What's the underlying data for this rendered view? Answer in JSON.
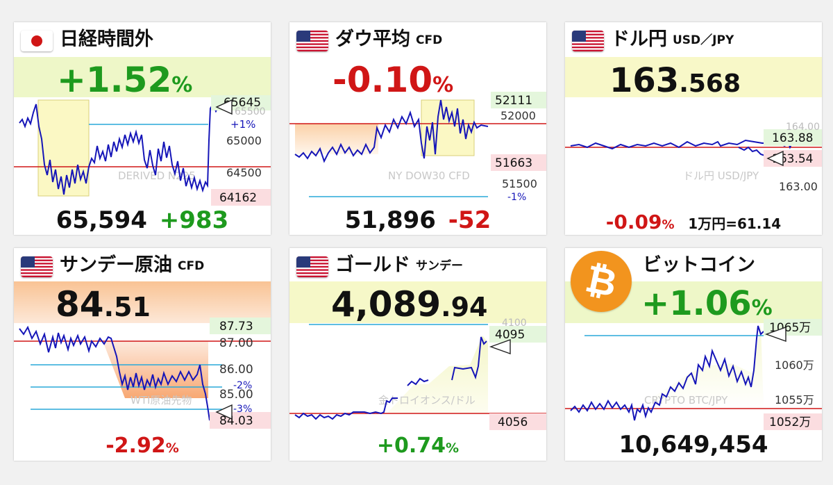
{
  "cards": {
    "nikkei": {
      "title": "日経時間外",
      "change_pct": "+1.52",
      "pct_sign": "%",
      "price": "65,594",
      "change": "+983",
      "axis": {
        "top": "65645",
        "hidden": "65500",
        "pct_mark": "+1%",
        "mid": "65000",
        "low": "64500",
        "bottom": "64162"
      },
      "watermark": "DERIVED N225"
    },
    "dow": {
      "title": "ダウ平均",
      "subtitle": "CFD",
      "change_pct": "-0.10",
      "pct_sign": "%",
      "price": "51,896",
      "change": "-52",
      "axis": {
        "top": "52111",
        "upper": "52000",
        "bottom": "51663",
        "low": "51500",
        "pct_mark": "-1%"
      },
      "watermark": "NY DOW30 CFD"
    },
    "usdjpy": {
      "title": "ドル円",
      "subtitle": "USD／JPY",
      "price_int": "163",
      "price_dec": ".568",
      "axis": {
        "hidden": "164.00",
        "top": "163.88",
        "bottom": "163.54",
        "low": "163.00"
      },
      "watermark": "ドル円 USD/JPY",
      "change_pct": "-0.09",
      "pct_sign": "%",
      "note": "1万円=61.14"
    },
    "oil": {
      "title": "サンデー原油",
      "subtitle": "CFD",
      "price_int": "84",
      "price_dec": ".51",
      "axis": {
        "top": "87.73",
        "l1": "87.00",
        "l2": "86.00",
        "pct1": "-2%",
        "l3": "85.00",
        "pct2": "-3%",
        "bottom": "84.03"
      },
      "watermark": "WTI原油先物",
      "change_pct": "-2.92",
      "pct_sign": "%"
    },
    "gold": {
      "title": "ゴールド",
      "subtitle": "サンデー",
      "price_int": "4,089",
      "price_dec": ".94",
      "axis": {
        "hidden": "4100",
        "top": "4095",
        "bottom": "4056"
      },
      "watermark": "金トロイオンス/ドル",
      "change_pct": "+0.74",
      "pct_sign": "%"
    },
    "btc": {
      "title": "ビットコイン",
      "change_pct": "+1.06",
      "pct_sign": "%",
      "axis": {
        "top": "1065万",
        "l1": "1060万",
        "l2": "1055万",
        "bottom": "1052万"
      },
      "watermark": "CRYPTO BTC/JPY",
      "price": "10,649,454"
    }
  },
  "colors": {
    "positive": "#1e9a1e",
    "negative": "#d01616",
    "line": "#1515b8",
    "ref_red": "#d01616",
    "ref_cyan": "#29a9d9"
  },
  "icons": {
    "jp_flag": "japan-flag-icon",
    "us_flag": "us-flag-icon",
    "bitcoin": "bitcoin-icon",
    "marker": "triangle-marker-icon"
  }
}
